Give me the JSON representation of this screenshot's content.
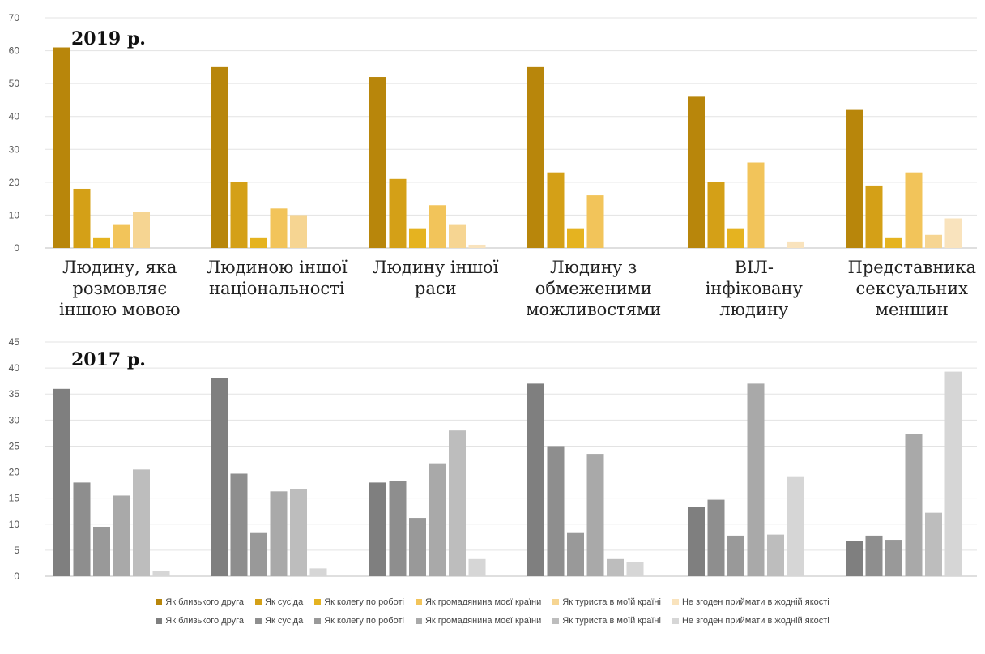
{
  "chart_data": [
    {
      "type": "bar",
      "title": "2019 р.",
      "categories": [
        [
          "Людину, яка",
          "розмовляє",
          "іншою мовою"
        ],
        [
          "Людиною іншої",
          "національності"
        ],
        [
          "Людину іншої",
          "раси"
        ],
        [
          "Людину з",
          "обмеженими",
          "можливостями"
        ],
        [
          "ВІЛ-",
          "інфіковану",
          "людину"
        ],
        [
          "Представника",
          "сексуальних",
          "меншин"
        ]
      ],
      "ylim": [
        0,
        70
      ],
      "yticks": [
        0,
        10,
        20,
        30,
        40,
        50,
        60,
        70
      ],
      "grid": true,
      "legend": "bottom",
      "series": [
        {
          "name": "Як близького друга",
          "color": "#b8860b",
          "values": [
            61,
            55,
            52,
            55,
            46,
            42
          ]
        },
        {
          "name": "Як сусіда",
          "color": "#d4a017",
          "values": [
            18,
            20,
            21,
            23,
            20,
            19
          ]
        },
        {
          "name": "Як колегу по роботі",
          "color": "#e5b320",
          "values": [
            3,
            3,
            6,
            6,
            6,
            3
          ]
        },
        {
          "name": "Як громадянина моєї країни",
          "color": "#f2c45a",
          "values": [
            7,
            12,
            13,
            16,
            26,
            23
          ]
        },
        {
          "name": "Як туриста в моїй країні",
          "color": "#f6d592",
          "values": [
            11,
            10,
            7,
            0,
            0,
            4
          ]
        },
        {
          "name": "Не згоден приймати в жодній якості",
          "color": "#f9e3bd",
          "values": [
            0,
            0,
            1,
            0,
            2,
            9
          ]
        }
      ]
    },
    {
      "type": "bar",
      "title": "2017 р.",
      "categories": [
        "",
        "",
        "",
        "",
        "",
        ""
      ],
      "ylim": [
        0,
        45
      ],
      "yticks": [
        0,
        5,
        10,
        15,
        20,
        25,
        30,
        35,
        40,
        45
      ],
      "grid": true,
      "legend": "bottom",
      "series": [
        {
          "name": "Як близького друга",
          "color": "#7f7f7f",
          "values": [
            36,
            38,
            18,
            37,
            13.3,
            6.7
          ]
        },
        {
          "name": "Як сусіда",
          "color": "#8e8e8e",
          "values": [
            18,
            19.7,
            18.3,
            25,
            14.7,
            7.8
          ]
        },
        {
          "name": "Як колегу по роботі",
          "color": "#999999",
          "values": [
            9.5,
            8.3,
            11.2,
            8.3,
            7.8,
            7
          ]
        },
        {
          "name": "Як громадянина моєї країни",
          "color": "#a9a9a9",
          "values": [
            15.5,
            16.3,
            21.7,
            23.5,
            37,
            27.3
          ]
        },
        {
          "name": "Як туриста в моїй країні",
          "color": "#bdbdbd",
          "values": [
            20.5,
            16.7,
            28,
            3.3,
            8,
            12.2
          ]
        },
        {
          "name": "Не згоден приймати в жодній якості",
          "color": "#d6d6d6",
          "values": [
            1,
            1.5,
            3.3,
            2.8,
            19.2,
            39.3
          ]
        }
      ]
    }
  ]
}
